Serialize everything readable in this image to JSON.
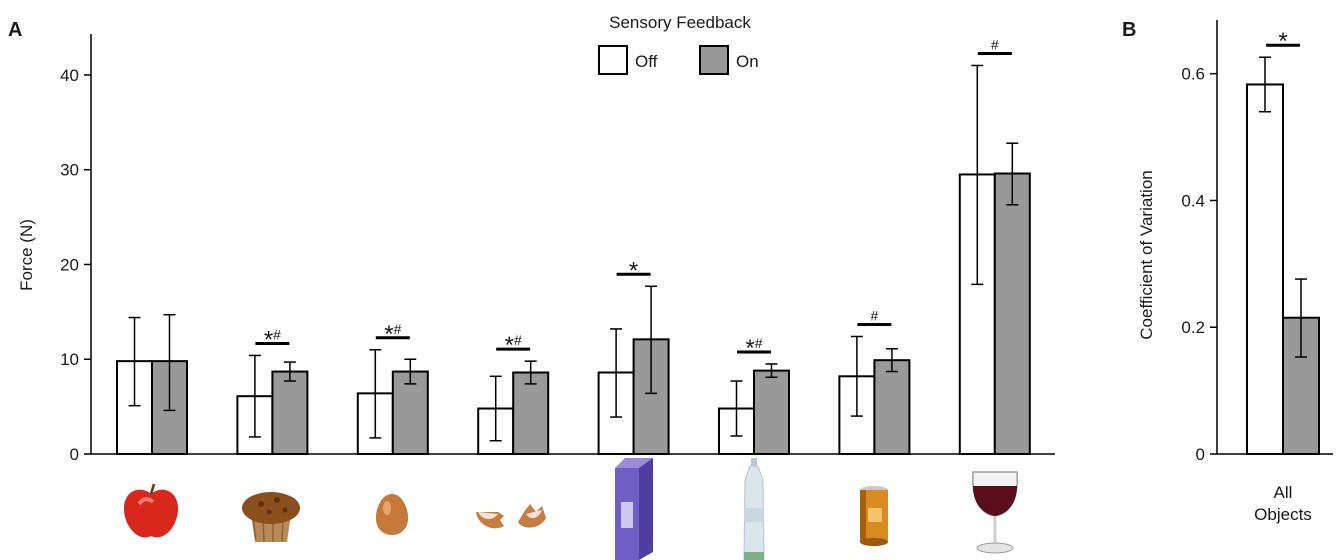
{
  "panel_a_letter": "A",
  "panel_b_letter": "B",
  "legend": {
    "title": "Sensory Feedback",
    "items": [
      {
        "label": "Off",
        "color": "#ffffff"
      },
      {
        "label": "On",
        "color": "#999999"
      }
    ]
  },
  "colors": {
    "off": "#ffffff",
    "on": "#999999",
    "stroke": "#000000"
  },
  "object_icons": [
    "apple-icon",
    "muffin-icon",
    "egg-icon",
    "eggshell-icon",
    "milk-carton-icon",
    "water-bottle-icon",
    "soda-can-icon",
    "wine-glass-icon"
  ],
  "chart_data": [
    {
      "type": "bar",
      "title": "",
      "xlabel": "",
      "ylabel": "Force (N)",
      "ylim": [
        0,
        42
      ],
      "yticks": [
        0,
        10,
        20,
        30,
        40
      ],
      "categories": [
        "",
        "",
        "",
        "",
        "",
        "",
        "",
        ""
      ],
      "series": [
        {
          "name": "Off",
          "values": [
            9.8,
            6.1,
            6.4,
            4.8,
            8.6,
            4.8,
            8.2,
            29.5
          ],
          "err_low": [
            5.1,
            1.8,
            1.7,
            1.4,
            3.9,
            1.9,
            4.0,
            17.9
          ],
          "err_high": [
            14.4,
            10.4,
            11.0,
            8.2,
            13.2,
            7.7,
            12.4,
            41.0
          ]
        },
        {
          "name": "On",
          "values": [
            9.8,
            8.7,
            8.7,
            8.6,
            12.1,
            8.8,
            9.9,
            29.6
          ],
          "err_low": [
            4.6,
            7.7,
            7.4,
            7.4,
            6.4,
            8.1,
            8.7,
            26.3
          ],
          "err_high": [
            14.7,
            9.7,
            10.0,
            9.8,
            17.7,
            9.5,
            11.1,
            32.8
          ]
        }
      ],
      "annotations": [
        {
          "category": 1,
          "text": "*#"
        },
        {
          "category": 2,
          "text": "*#"
        },
        {
          "category": 3,
          "text": "*#"
        },
        {
          "category": 4,
          "text": "*"
        },
        {
          "category": 5,
          "text": "*#"
        },
        {
          "category": 6,
          "text": "#"
        },
        {
          "category": 7,
          "text": "#"
        }
      ]
    },
    {
      "type": "bar",
      "title": "",
      "xlabel": "",
      "ylabel": "Coefficient of Variation",
      "ylim": [
        0,
        0.65
      ],
      "yticks": [
        0,
        0.2,
        0.4,
        0.6
      ],
      "ytick_labels": [
        "0",
        "0.2",
        "0.4",
        "0.6"
      ],
      "categories": [
        "All Objects"
      ],
      "category_lines": [
        "All",
        "Objects"
      ],
      "series": [
        {
          "name": "Off",
          "values": [
            0.583
          ],
          "err_low": [
            0.54
          ],
          "err_high": [
            0.626
          ]
        },
        {
          "name": "On",
          "values": [
            0.215
          ],
          "err_low": [
            0.153
          ],
          "err_high": [
            0.276
          ]
        }
      ],
      "annotations": [
        {
          "category": 0,
          "text": "*"
        }
      ]
    }
  ]
}
